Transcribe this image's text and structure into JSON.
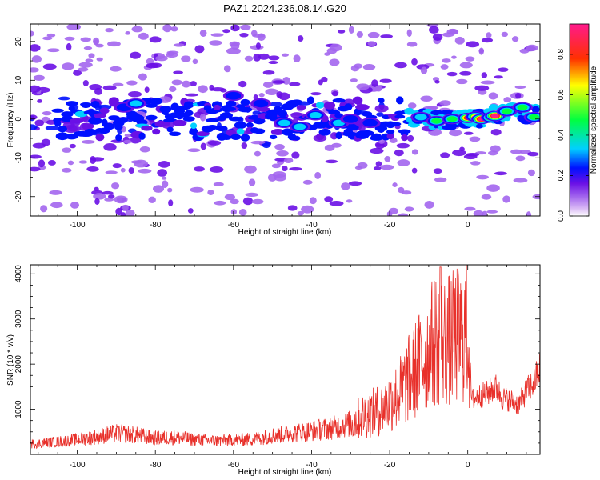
{
  "figure": {
    "title": "PAZ1.2024.236.08.14.G20"
  },
  "colors": {
    "background": "#ffffff",
    "axis": "#000000",
    "snr_line": "#e8302a",
    "colormap": [
      "#ffffff",
      "#d9b8f5",
      "#a366ee",
      "#6a10e6",
      "#0010ff",
      "#00d0ff",
      "#00ff40",
      "#ffff00",
      "#ff3000",
      "#ff1a8c"
    ]
  },
  "chart_data": [
    {
      "type": "heatmap",
      "title": "",
      "xlabel": "Height of straight line (km)",
      "ylabel": "Frequency (Hz)",
      "xlim": [
        -112,
        18.5
      ],
      "ylim": [
        -25,
        24.5
      ],
      "xticks": [
        -100,
        -80,
        -60,
        -40,
        -20,
        0
      ],
      "yticks": [
        -20,
        -10,
        0,
        10,
        20
      ],
      "colorbar": {
        "label": "Normalized spectral amplitude",
        "range": [
          0,
          0.95
        ],
        "ticks": [
          "0.0",
          "0.2",
          "0.4",
          "0.6",
          "0.8"
        ]
      },
      "hotspots": [
        {
          "x": -88,
          "y": 3,
          "z": 0.22
        },
        {
          "x": -85,
          "y": 4,
          "z": 0.3
        },
        {
          "x": -60,
          "y": 6,
          "z": 0.28
        },
        {
          "x": -53,
          "y": 4,
          "z": 0.22
        },
        {
          "x": -47,
          "y": -1,
          "z": 0.3
        },
        {
          "x": -43,
          "y": -2,
          "z": 0.32
        },
        {
          "x": -39,
          "y": 1,
          "z": 0.3
        },
        {
          "x": -33,
          "y": -1,
          "z": 0.3
        },
        {
          "x": -30,
          "y": 0,
          "z": 0.28
        },
        {
          "x": -25,
          "y": -1,
          "z": 0.25
        },
        {
          "x": -12,
          "y": 0.5,
          "z": 0.3
        },
        {
          "x": -8,
          "y": -0.5,
          "z": 0.4
        },
        {
          "x": -4,
          "y": 0,
          "z": 0.48
        },
        {
          "x": 0,
          "y": 0.3,
          "z": 0.7
        },
        {
          "x": 2,
          "y": 0.6,
          "z": 0.52
        },
        {
          "x": 3.5,
          "y": 0,
          "z": 0.85
        },
        {
          "x": 6,
          "y": 0.4,
          "z": 0.65
        },
        {
          "x": 7,
          "y": 0.8,
          "z": 0.88
        },
        {
          "x": 10,
          "y": 2,
          "z": 0.5
        },
        {
          "x": 14,
          "y": 3,
          "z": 0.45
        },
        {
          "x": 17,
          "y": 0.5,
          "z": 0.5
        }
      ]
    },
    {
      "type": "line",
      "title": "",
      "xlabel": "Height of straight line (km)",
      "ylabel": "SNR (10 * v/v)",
      "xlim": [
        -112,
        18.5
      ],
      "ylim": [
        0,
        4200
      ],
      "xticks": [
        -100,
        -80,
        -60,
        -40,
        -20,
        0
      ],
      "yticks": [
        1000,
        2000,
        3000,
        4000
      ],
      "series": [
        {
          "x": [
            -112,
            -105,
            -100,
            -95,
            -90,
            -85,
            -80,
            -75,
            -70,
            -65,
            -60,
            -55,
            -50,
            -45,
            -40,
            -35,
            -30,
            -27,
            -25,
            -22,
            -20,
            -18,
            -16,
            -14,
            -12,
            -10,
            -8,
            -6,
            -4,
            -2,
            -1,
            0,
            1,
            3,
            5,
            7,
            9,
            11,
            13,
            15,
            17,
            18.5
          ],
          "values": [
            230,
            280,
            330,
            390,
            470,
            430,
            360,
            380,
            330,
            300,
            320,
            340,
            420,
            470,
            520,
            580,
            680,
            850,
            900,
            1000,
            1150,
            1300,
            1550,
            1800,
            2050,
            2300,
            2600,
            2500,
            2550,
            2650,
            2700,
            2800,
            1200,
            1300,
            1350,
            1500,
            1250,
            1200,
            1100,
            1400,
            1600,
            1900
          ],
          "peak": {
            "x": -7,
            "y": 4150
          }
        }
      ]
    }
  ]
}
